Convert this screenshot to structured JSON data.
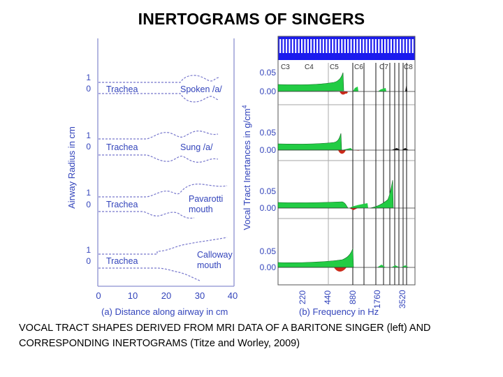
{
  "title": "INERTOGRAMS OF SINGERS",
  "caption": "VOCAL TRACT SHAPES DERIVED FROM MRI DATA OF A BARITONE SINGER (left) AND CORRESPONDING INERTOGRAMS (Titze and Worley, 2009)",
  "left_panel": {
    "ylabel": "Airway Radius in cm",
    "xlabel": "(a)  Distance along airway in cm",
    "xticks": [
      "0",
      "10",
      "20",
      "30",
      "40"
    ],
    "rows": [
      {
        "tick_top": "1",
        "tick_bottom": "0",
        "trachea": "Trachea",
        "label1": "Spoken /a/",
        "label2": ""
      },
      {
        "tick_top": "1",
        "tick_bottom": "0",
        "trachea": "Trachea",
        "label1": "Sung /a/",
        "label2": ""
      },
      {
        "tick_top": "1",
        "tick_bottom": "0",
        "trachea": "Trachea",
        "label1": "Pavarotti",
        "label2": "mouth"
      },
      {
        "tick_top": "1",
        "tick_bottom": "0",
        "trachea": "Trachea",
        "label1": "Calloway",
        "label2": "mouth"
      }
    ]
  },
  "right_panel": {
    "ylabel": "Vocal Tract Inertances in g/cm",
    "ylabel_sup": "4",
    "xlabel": "(b)  Frequency in Hz",
    "xticks": [
      "220",
      "440",
      "880",
      "1760",
      "3520"
    ],
    "note_labels": [
      "C3",
      "C4",
      "C5",
      "C6",
      "C7",
      "C8"
    ],
    "rows": [
      {
        "y_top": "0.05",
        "y_zero": "0.00"
      },
      {
        "y_top": "0.05",
        "y_zero": "0.00"
      },
      {
        "y_top": "0.05",
        "y_zero": "0.00"
      },
      {
        "y_top": "0.05",
        "y_zero": "0.00"
      }
    ],
    "colors": {
      "positive": "#22cc44",
      "negative": "#cc2a1a",
      "keyboard": "#1a1aee",
      "airway": "#3344bb"
    }
  }
}
